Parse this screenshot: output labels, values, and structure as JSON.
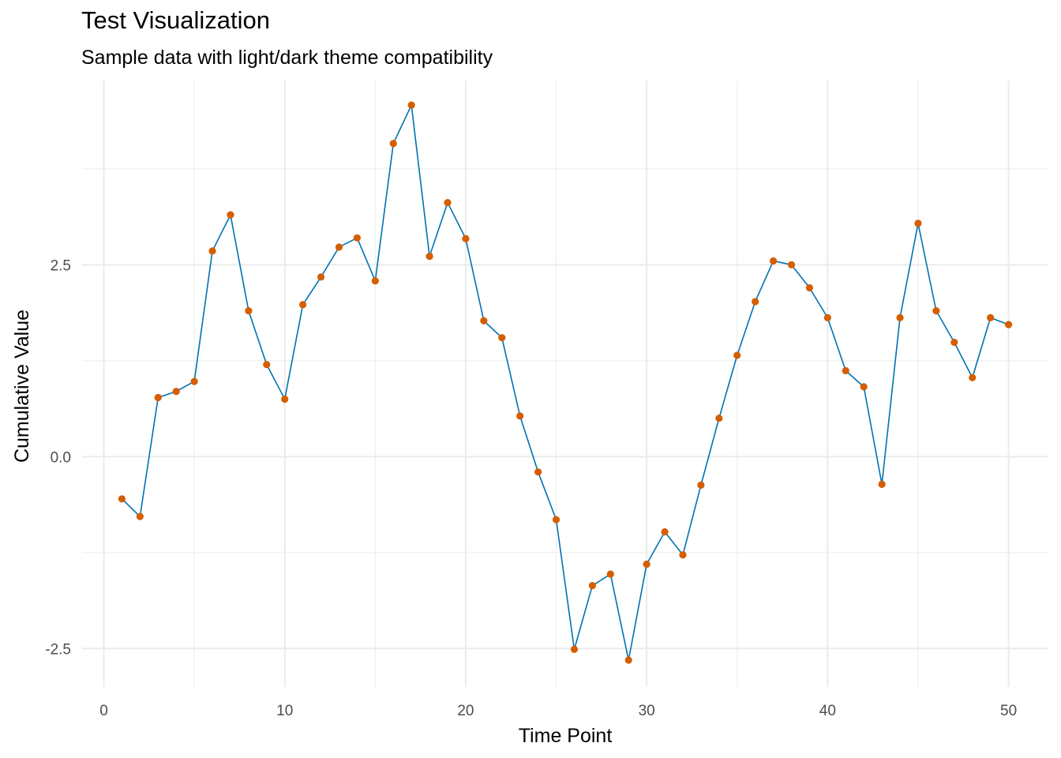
{
  "chart_data": {
    "type": "line",
    "title": "Test Visualization",
    "subtitle": "Sample data with light/dark theme compatibility",
    "xlabel": "Time Point",
    "ylabel": "Cumulative Value",
    "xlim": [
      -1.2,
      52.2
    ],
    "ylim": [
      -3.0,
      4.9
    ],
    "x_ticks": [
      0,
      10,
      20,
      30,
      40,
      50
    ],
    "x_tick_labels": [
      "0",
      "10",
      "20",
      "30",
      "40",
      "50"
    ],
    "y_ticks": [
      -2.5,
      0,
      2.5
    ],
    "y_tick_labels": [
      "-2.5",
      "0.0",
      "2.5"
    ],
    "grid": true,
    "legend": "none",
    "colors": {
      "line": "#0072B2",
      "points": "#D55E00",
      "grid": "#EBEBEB"
    },
    "series": [
      {
        "x": [
          1,
          2,
          3,
          4,
          5,
          6,
          7,
          8,
          9,
          10,
          11,
          12,
          13,
          14,
          15,
          16,
          17,
          18,
          19,
          20,
          21,
          22,
          23,
          24,
          25,
          26,
          27,
          28,
          29,
          30,
          31,
          32,
          33,
          34,
          35,
          36,
          37,
          38,
          39,
          40,
          41,
          42,
          43,
          44,
          45,
          46,
          47,
          48,
          49,
          50
        ],
        "values": [
          -0.55,
          -0.78,
          0.77,
          0.85,
          0.98,
          2.68,
          3.15,
          1.9,
          1.2,
          0.75,
          1.98,
          2.34,
          2.73,
          2.85,
          2.29,
          4.08,
          4.58,
          2.61,
          3.31,
          2.84,
          1.77,
          1.55,
          0.53,
          -0.2,
          -0.82,
          -2.51,
          -1.68,
          -1.53,
          -2.65,
          -1.4,
          -0.98,
          -1.28,
          -0.37,
          0.5,
          1.32,
          2.02,
          2.55,
          2.5,
          2.2,
          1.81,
          1.12,
          0.91,
          -0.36,
          1.81,
          3.04,
          1.9,
          1.49,
          1.03,
          1.81,
          1.72
        ]
      }
    ]
  }
}
